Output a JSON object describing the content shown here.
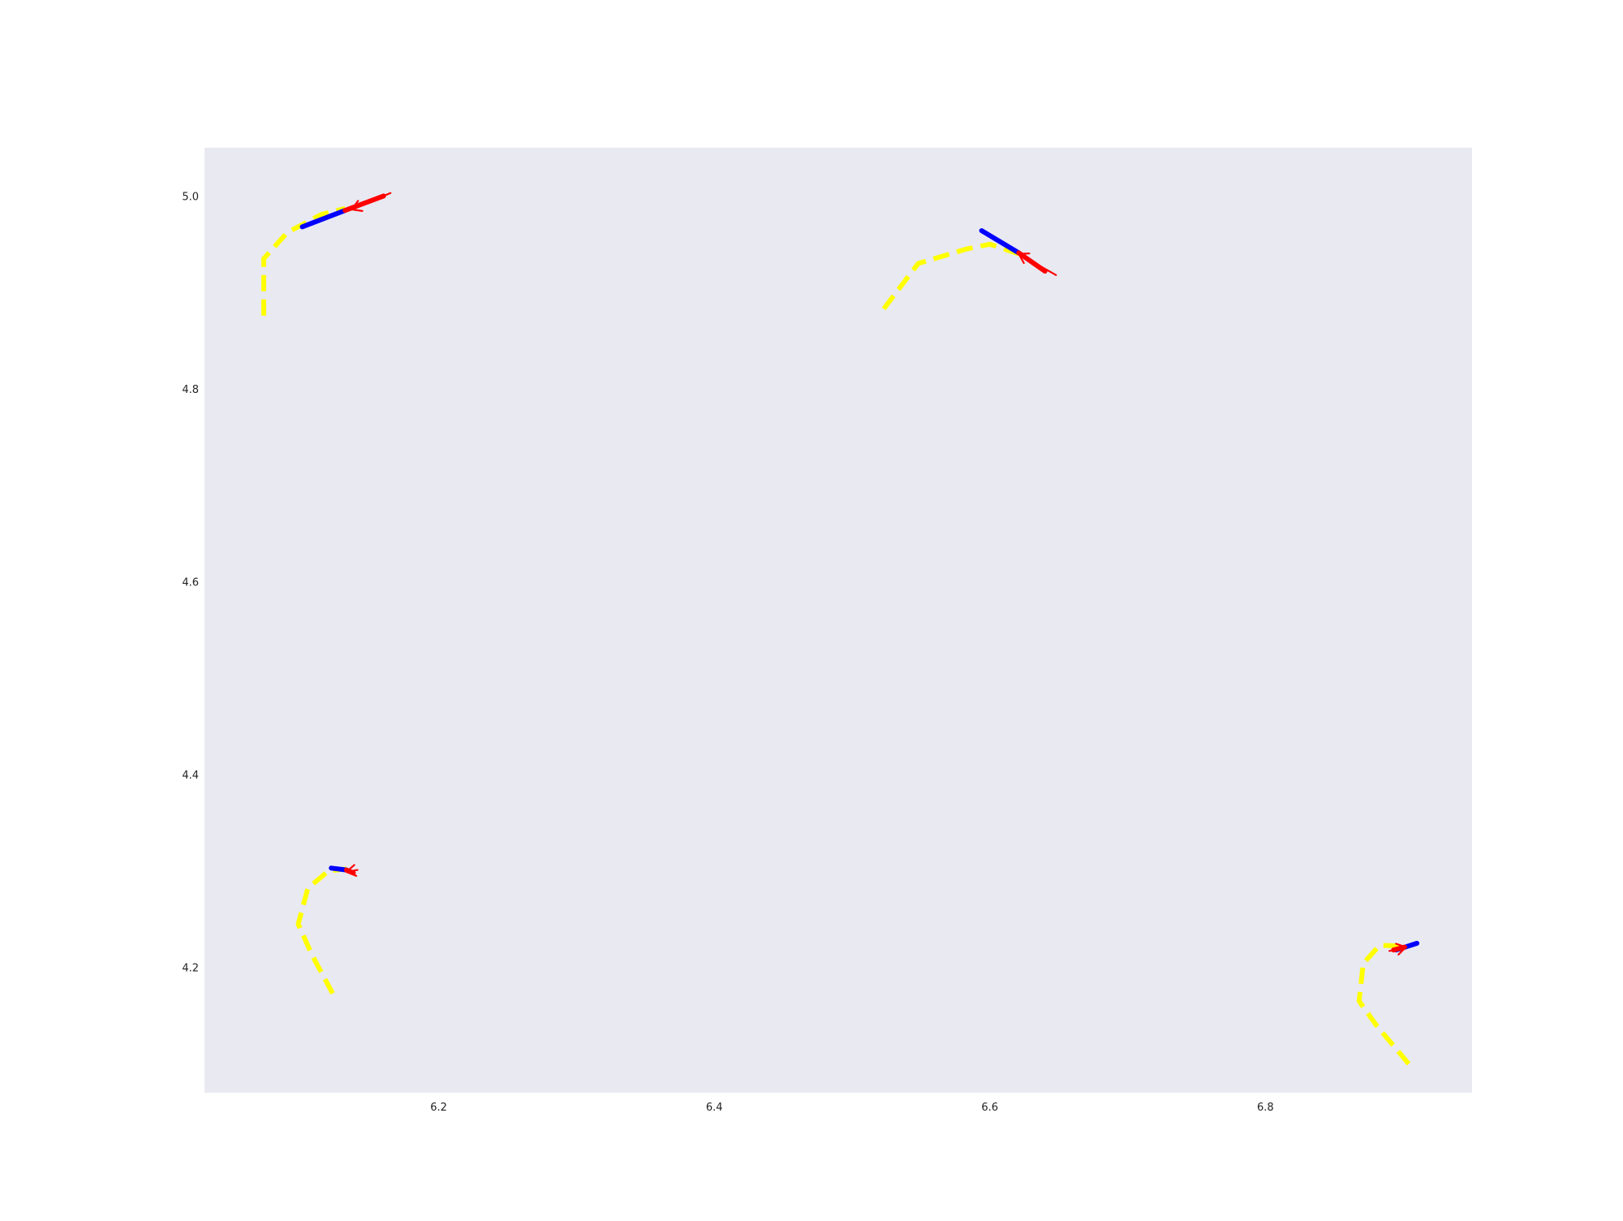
{
  "chart_data": {
    "type": "line",
    "title": "",
    "xlabel": "",
    "ylabel": "",
    "xlim": [
      6.03,
      6.95
    ],
    "ylim": [
      4.07,
      5.05
    ],
    "grid": false,
    "x_ticks": [
      6.2,
      6.4,
      6.6,
      6.8
    ],
    "x_tick_labels": [
      "6.2",
      "6.4",
      "6.6",
      "6.8"
    ],
    "y_ticks": [
      4.2,
      4.4,
      4.6,
      4.8,
      5.0
    ],
    "y_tick_labels": [
      "4.2",
      "4.4",
      "4.6",
      "4.8",
      "5.0"
    ],
    "colors": {
      "background": "#ffffff",
      "plot_area": "#e9e9f2",
      "path": "#ffff00",
      "history": "#0000ff",
      "future": "#ff0000"
    },
    "groups": [
      {
        "path": [
          [
            6.073,
            4.876
          ],
          [
            6.073,
            4.935
          ],
          [
            6.09,
            4.962
          ],
          [
            6.115,
            4.981
          ],
          [
            6.132,
            4.987
          ]
        ],
        "history": [
          [
            6.101,
            4.968
          ],
          [
            6.132,
            4.985
          ]
        ],
        "future": [
          [
            6.132,
            4.985
          ],
          [
            6.16,
            5.0
          ]
        ],
        "arrow": [
          [
            6.165,
            5.003
          ],
          [
            6.137,
            4.986
          ]
        ]
      },
      {
        "path": [
          [
            6.523,
            4.883
          ],
          [
            6.548,
            4.93
          ],
          [
            6.583,
            4.945
          ],
          [
            6.6,
            4.95
          ],
          [
            6.621,
            4.94
          ]
        ],
        "history": [
          [
            6.594,
            4.964
          ],
          [
            6.621,
            4.941
          ]
        ],
        "future": [
          [
            6.621,
            4.941
          ],
          [
            6.64,
            4.922
          ]
        ],
        "arrow": [
          [
            6.648,
            4.918
          ],
          [
            6.621,
            4.94
          ]
        ]
      },
      {
        "path": [
          [
            6.123,
            4.173
          ],
          [
            6.108,
            4.213
          ],
          [
            6.098,
            4.245
          ],
          [
            6.105,
            4.282
          ],
          [
            6.12,
            4.3
          ],
          [
            6.133,
            4.302
          ]
        ],
        "history": [
          [
            6.122,
            4.303
          ],
          [
            6.133,
            4.301
          ]
        ],
        "future": [
          [
            6.133,
            4.301
          ],
          [
            6.138,
            4.298
          ]
        ],
        "arrow": [
          [
            6.141,
            4.301
          ],
          [
            6.133,
            4.299
          ]
        ]
      },
      {
        "path": [
          [
            6.904,
            4.1
          ],
          [
            6.881,
            4.139
          ],
          [
            6.868,
            4.165
          ],
          [
            6.871,
            4.204
          ],
          [
            6.883,
            4.223
          ],
          [
            6.899,
            4.222
          ]
        ],
        "history": [
          [
            6.895,
            4.218
          ],
          [
            6.91,
            4.225
          ]
        ],
        "future": [
          [
            6.893,
            4.218
          ],
          [
            6.901,
            4.221
          ]
        ],
        "arrow": [
          [
            6.89,
            4.217
          ],
          [
            6.902,
            4.221
          ]
        ]
      }
    ]
  }
}
